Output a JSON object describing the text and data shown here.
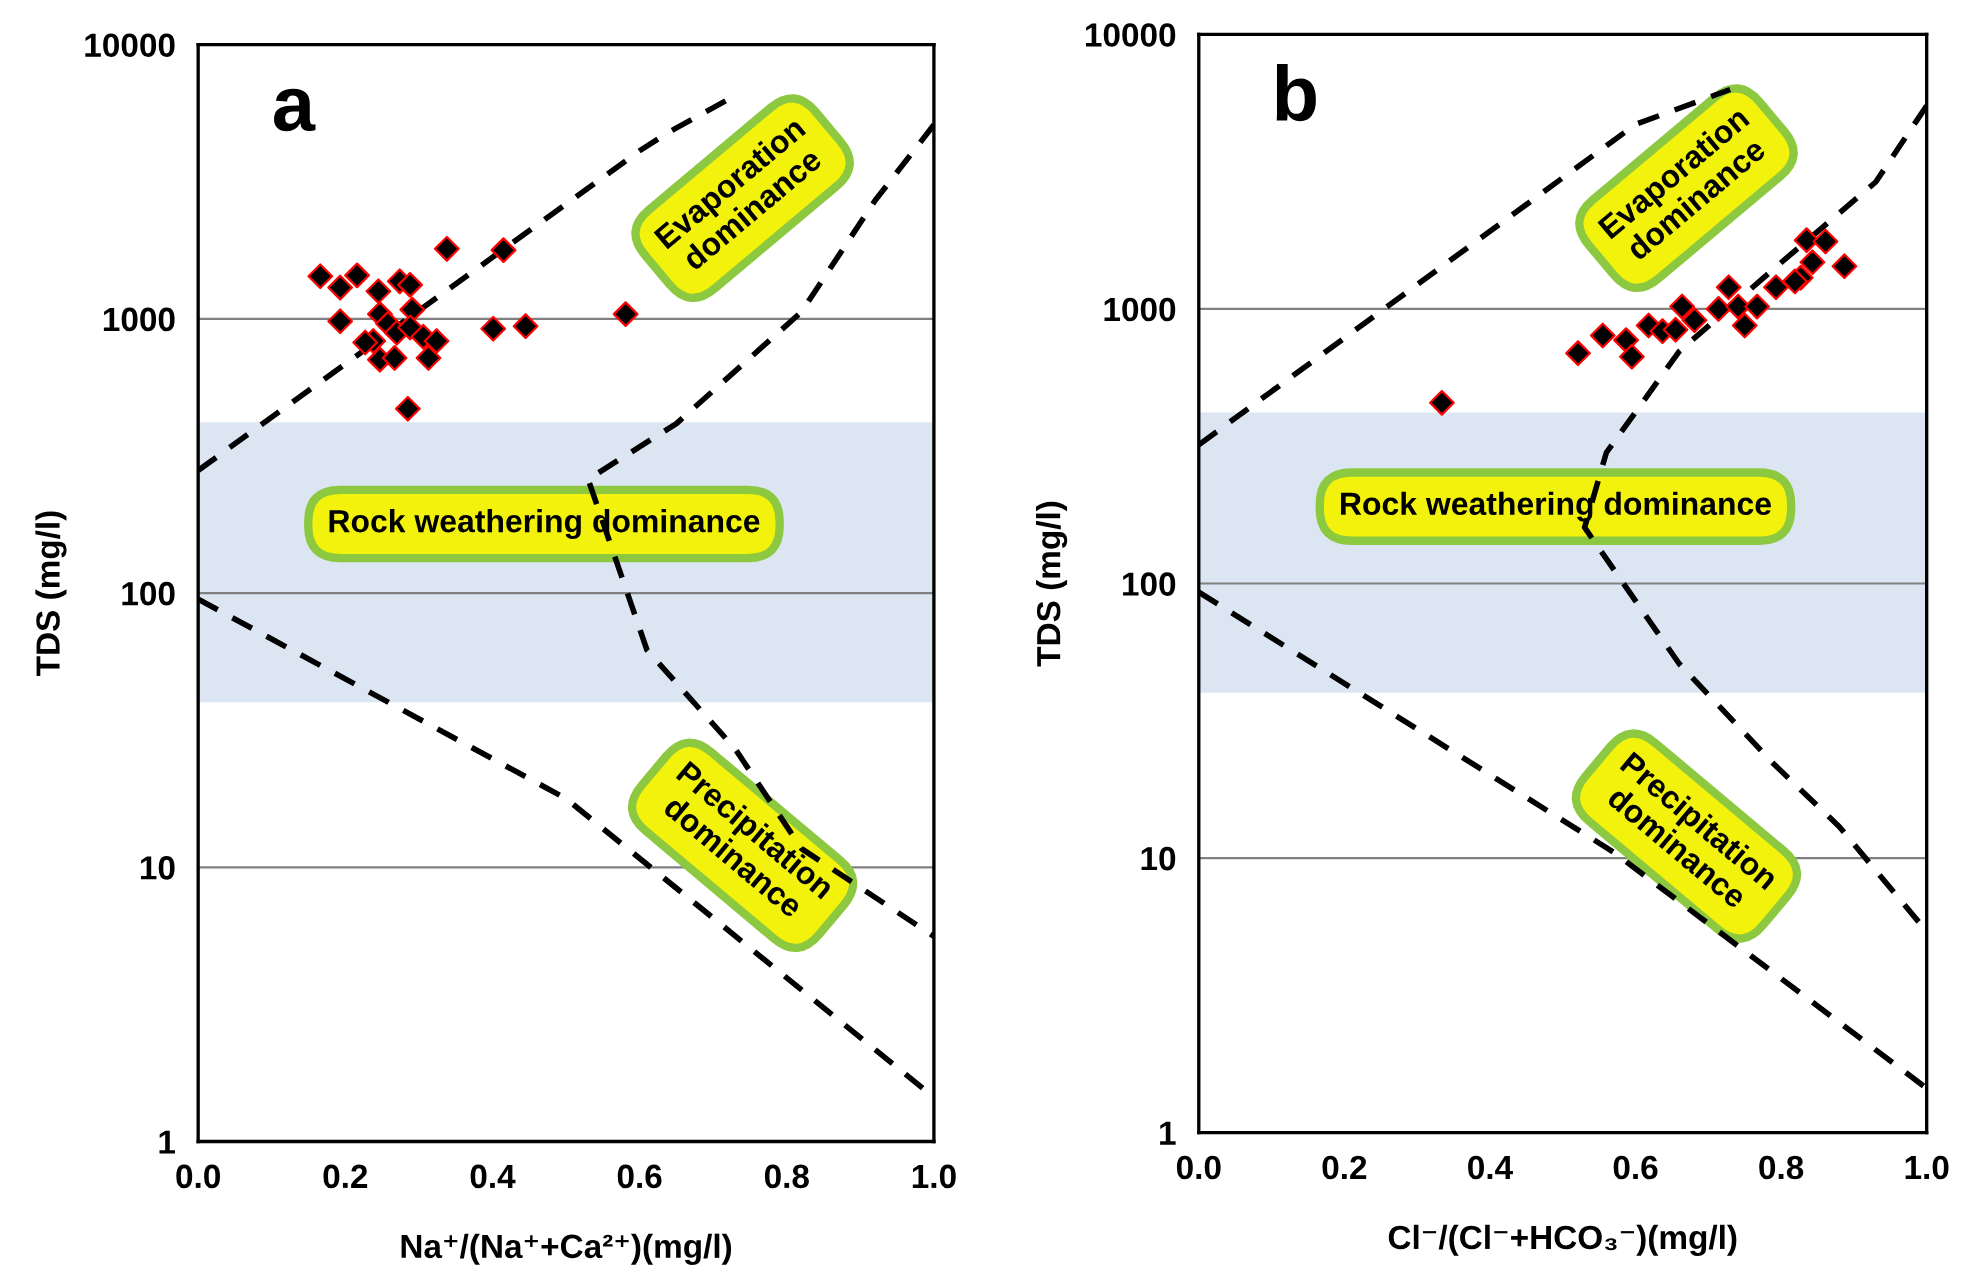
{
  "chart_data": [
    {
      "type": "scatter",
      "title": "a",
      "xlabel": "Na⁺/(Na⁺+Ca²⁺)(mg/l)",
      "ylabel": "TDS (mg/l)",
      "log": "y",
      "grid": "y",
      "legend": false,
      "xlim": [
        0,
        1
      ],
      "ylim": [
        1,
        10000
      ],
      "xticks": [
        {
          "value": 0,
          "label": "0.0"
        },
        {
          "value": 0.2,
          "label": "0.2"
        },
        {
          "value": 0.4,
          "label": "0.4"
        },
        {
          "value": 0.6,
          "label": "0.6"
        },
        {
          "value": 0.8,
          "label": "0.8"
        },
        {
          "value": 1,
          "label": "1.0"
        }
      ],
      "yticks": [
        1,
        10,
        100,
        1000,
        10000
      ],
      "bands": [
        {
          "axis": "y",
          "from": 40,
          "to": 420,
          "color": "#dce6f2"
        }
      ],
      "annotations": [
        "Evaporation dominance",
        "Rock weathering dominance",
        "Precipitation dominance"
      ],
      "series": [
        {
          "color": "#000000",
          "marker": "diamond",
          "x": [
            0.166,
            0.193,
            0.216,
            0.338,
            0.415,
            0.193,
            0.245,
            0.274,
            0.288,
            0.291,
            0.247,
            0.258,
            0.238,
            0.247,
            0.267,
            0.27,
            0.288,
            0.306,
            0.324,
            0.313,
            0.227,
            0.401,
            0.445,
            0.581,
            0.285
          ],
          "values": [
            1430,
            1300,
            1440,
            1800,
            1780,
            980,
            1260,
            1370,
            1330,
            1080,
            1040,
            960,
            830,
            710,
            720,
            890,
            930,
            860,
            830,
            720,
            820,
            920,
            940,
            1040,
            470
          ]
        },
        {
          "type": "line",
          "color": "#000000",
          "line_style": "dashed",
          "marker": "none",
          "x": [
            0.0,
            0.6,
            0.64,
            0.72
          ],
          "values": [
            280,
            4100,
            4800,
            6300
          ]
        },
        {
          "type": "line",
          "color": "#000000",
          "line_style": "dashed",
          "marker": "none",
          "x": [
            1.0,
            0.92,
            0.82,
            0.65,
            0.53,
            0.61,
            0.73,
            0.82,
            1.0
          ],
          "values": [
            5100,
            2700,
            1060,
            415,
            260,
            62,
            27,
            11.7,
            5.6
          ]
        },
        {
          "type": "line",
          "color": "#000000",
          "line_style": "dashed",
          "marker": "none",
          "x": [
            0.0,
            0.5,
            1.0
          ],
          "values": [
            95,
            17.8,
            1.45
          ]
        }
      ]
    },
    {
      "type": "scatter",
      "title": "b",
      "xlabel": "Cl⁻/(Cl⁻+HCO₃⁻)(mg/l)",
      "ylabel": "TDS (mg/l)",
      "log": "y",
      "grid": "y",
      "legend": false,
      "xlim": [
        0,
        1
      ],
      "ylim": [
        1,
        10000
      ],
      "xticks": [
        {
          "value": 0,
          "label": "0.0"
        },
        {
          "value": 0.2,
          "label": "0.2"
        },
        {
          "value": 0.4,
          "label": "0.4"
        },
        {
          "value": 0.6,
          "label": "0.6"
        },
        {
          "value": 0.8,
          "label": "0.8"
        },
        {
          "value": 1,
          "label": "1.0"
        }
      ],
      "yticks": [
        1,
        10,
        100,
        1000,
        10000
      ],
      "bands": [
        {
          "axis": "y",
          "from": 40,
          "to": 420,
          "color": "#dce6f2"
        }
      ],
      "annotations": [
        "Evaporation dominance",
        "Rock weathering dominance",
        "Precipitation dominance"
      ],
      "series": [
        {
          "color": "#000000",
          "marker": "diamond",
          "x": [
            0.334,
            0.521,
            0.555,
            0.587,
            0.595,
            0.618,
            0.637,
            0.664,
            0.681,
            0.714,
            0.728,
            0.75,
            0.741,
            0.767,
            0.793,
            0.827,
            0.843,
            0.835,
            0.861,
            0.887,
            0.819,
            0.655
          ],
          "values": [
            455,
            690,
            800,
            770,
            670,
            870,
            830,
            1020,
            910,
            1000,
            1200,
            870,
            1020,
            1020,
            1200,
            1300,
            1480,
            1780,
            1760,
            1430,
            1260,
            840
          ]
        },
        {
          "type": "line",
          "color": "#000000",
          "line_style": "dashed",
          "marker": "none",
          "x": [
            0.0,
            0.6,
            0.73
          ],
          "values": [
            320,
            4700,
            6300
          ]
        },
        {
          "type": "line",
          "color": "#000000",
          "line_style": "dashed",
          "marker": "none",
          "x": [
            1.0,
            0.93,
            0.79,
            0.66,
            0.56,
            0.53,
            0.66,
            0.79,
            0.88,
            1.0
          ],
          "values": [
            5500,
            2900,
            1400,
            700,
            300,
            160,
            51,
            22,
            13,
            5.4
          ]
        },
        {
          "type": "line",
          "color": "#000000",
          "line_style": "dashed",
          "marker": "none",
          "x": [
            0.0,
            0.57,
            1.0
          ],
          "values": [
            93,
            10.5,
            1.45
          ]
        }
      ]
    }
  ]
}
